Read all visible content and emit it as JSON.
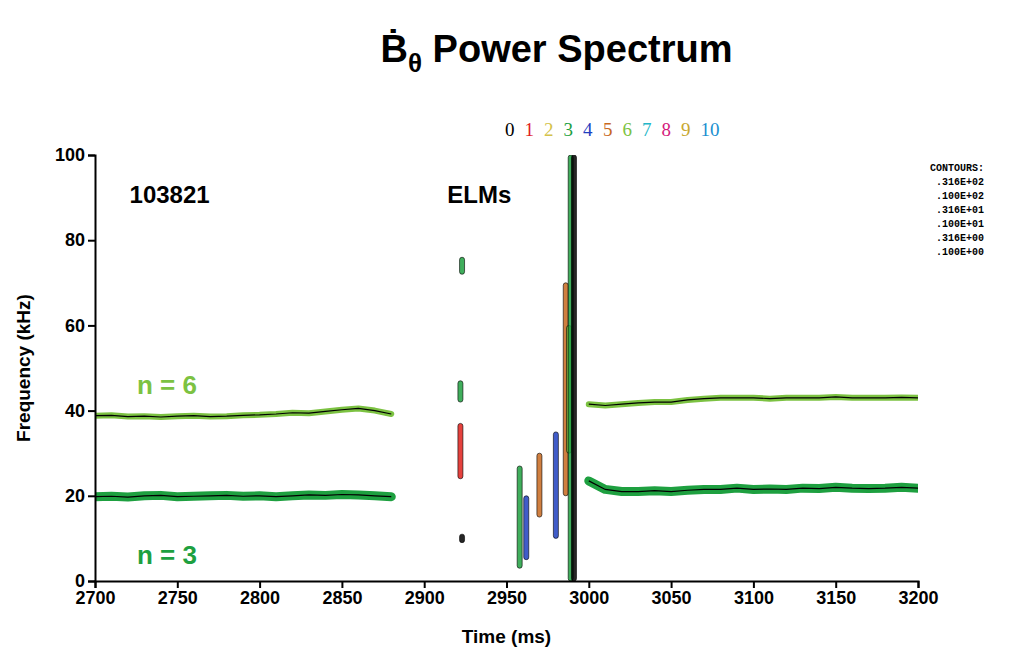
{
  "chart_data": {
    "type": "line",
    "title": "Ḃθ Power Spectrum",
    "x_label": "Time (ms)",
    "y_label": "Frequency (kHz)",
    "xlim": [
      2700,
      3200
    ],
    "ylim": [
      0,
      100
    ],
    "xticks": [
      2700,
      2750,
      2800,
      2850,
      2900,
      2950,
      3000,
      3050,
      3100,
      3150,
      3200
    ],
    "yticks": [
      0,
      20,
      40,
      60,
      80,
      100
    ],
    "x": [
      2700,
      2710,
      2720,
      2730,
      2740,
      2750,
      2760,
      2770,
      2780,
      2790,
      2800,
      2810,
      2820,
      2830,
      2840,
      2850,
      2860,
      2870,
      2880,
      2890,
      2900,
      2910,
      2920,
      2930,
      2940,
      2950,
      2960,
      2970,
      2980,
      2990,
      3000,
      3010,
      3020,
      3030,
      3040,
      3050,
      3060,
      3070,
      3080,
      3090,
      3100,
      3110,
      3120,
      3130,
      3140,
      3150,
      3160,
      3170,
      3180,
      3190,
      3200
    ],
    "series": [
      {
        "name": "n = 6",
        "color": "#7cc242",
        "values": [
          38.8,
          38.9,
          38.6,
          38.7,
          38.5,
          38.7,
          38.8,
          38.6,
          38.7,
          38.9,
          39.0,
          39.2,
          39.5,
          39.4,
          39.8,
          40.2,
          40.5,
          40.0,
          39.2,
          null,
          null,
          null,
          null,
          null,
          null,
          null,
          null,
          null,
          null,
          null,
          41.5,
          41.2,
          41.5,
          41.8,
          42.0,
          42.0,
          42.5,
          42.8,
          43.0,
          43.0,
          43.0,
          42.8,
          43.0,
          43.0,
          43.0,
          43.2,
          43.0,
          43.0,
          43.0,
          43.1,
          43.0
        ]
      },
      {
        "name": "n = 3",
        "color": "#1ea040",
        "values": [
          19.8,
          19.9,
          19.7,
          20.0,
          20.1,
          19.8,
          19.9,
          20.0,
          20.1,
          19.9,
          20.0,
          19.8,
          20.0,
          20.2,
          20.1,
          20.3,
          20.2,
          20.0,
          19.8,
          null,
          null,
          null,
          null,
          null,
          null,
          null,
          null,
          null,
          null,
          null,
          23.5,
          21.5,
          21.0,
          21.0,
          21.2,
          21.0,
          21.3,
          21.5,
          21.5,
          21.8,
          21.5,
          21.6,
          21.5,
          21.8,
          21.7,
          22.0,
          21.8,
          21.7,
          21.8,
          22.0,
          21.8
        ]
      }
    ],
    "annotations": [
      {
        "text": "103821",
        "x": 2721,
        "y": 90.6
      },
      {
        "text": "ELMs",
        "x": 2914,
        "y": 90.6
      }
    ],
    "mode_numbers": [
      {
        "n": 0,
        "color": "#000000"
      },
      {
        "n": 1,
        "color": "#e0201b"
      },
      {
        "n": 2,
        "color": "#d4c24a"
      },
      {
        "n": 3,
        "color": "#1ea040"
      },
      {
        "n": 4,
        "color": "#1f3fbf"
      },
      {
        "n": 5,
        "color": "#c8691e"
      },
      {
        "n": 6,
        "color": "#7cc242"
      },
      {
        "n": 7,
        "color": "#22b6c8"
      },
      {
        "n": 8,
        "color": "#d4197c"
      },
      {
        "n": 9,
        "color": "#c8a830"
      },
      {
        "n": 10,
        "color": "#1a8fd0"
      }
    ],
    "elm_bursts": [
      {
        "time": 2923,
        "f_lo": 72,
        "f_hi": 76,
        "n": 3
      },
      {
        "time": 2922,
        "f_lo": 42,
        "f_hi": 47,
        "n": 3
      },
      {
        "time": 2922,
        "f_lo": 24,
        "f_hi": 37,
        "n": 1
      },
      {
        "time": 2923,
        "f_lo": 9,
        "f_hi": 11,
        "n": 0
      },
      {
        "time": 2958,
        "f_lo": 3,
        "f_hi": 27,
        "n": 3
      },
      {
        "time": 2962,
        "f_lo": 5,
        "f_hi": 20,
        "n": 4
      },
      {
        "time": 2970,
        "f_lo": 15,
        "f_hi": 30,
        "n": 5
      },
      {
        "time": 2980,
        "f_lo": 10,
        "f_hi": 35,
        "n": 4
      },
      {
        "time": 2986,
        "f_lo": 20,
        "f_hi": 70,
        "n": 5
      },
      {
        "time": 2988,
        "f_lo": 30,
        "f_hi": 60,
        "n": 6
      },
      {
        "time": 2989,
        "f_lo": 0,
        "f_hi": 100,
        "n": 3
      },
      {
        "time": 2991,
        "f_lo": 0,
        "f_hi": 100,
        "n": 0
      }
    ],
    "contours": {
      "label": "CONTOURS:",
      "levels": [
        {
          "value": 31.6,
          "label": ".316E+02"
        },
        {
          "value": 10,
          "label": ".100E+02"
        },
        {
          "value": 3.16,
          "label": ".316E+01"
        },
        {
          "value": 1,
          "label": ".100E+01"
        },
        {
          "value": 0.316,
          "label": ".316E+00"
        },
        {
          "value": 0.1,
          "label": ".100E+00"
        }
      ]
    }
  }
}
